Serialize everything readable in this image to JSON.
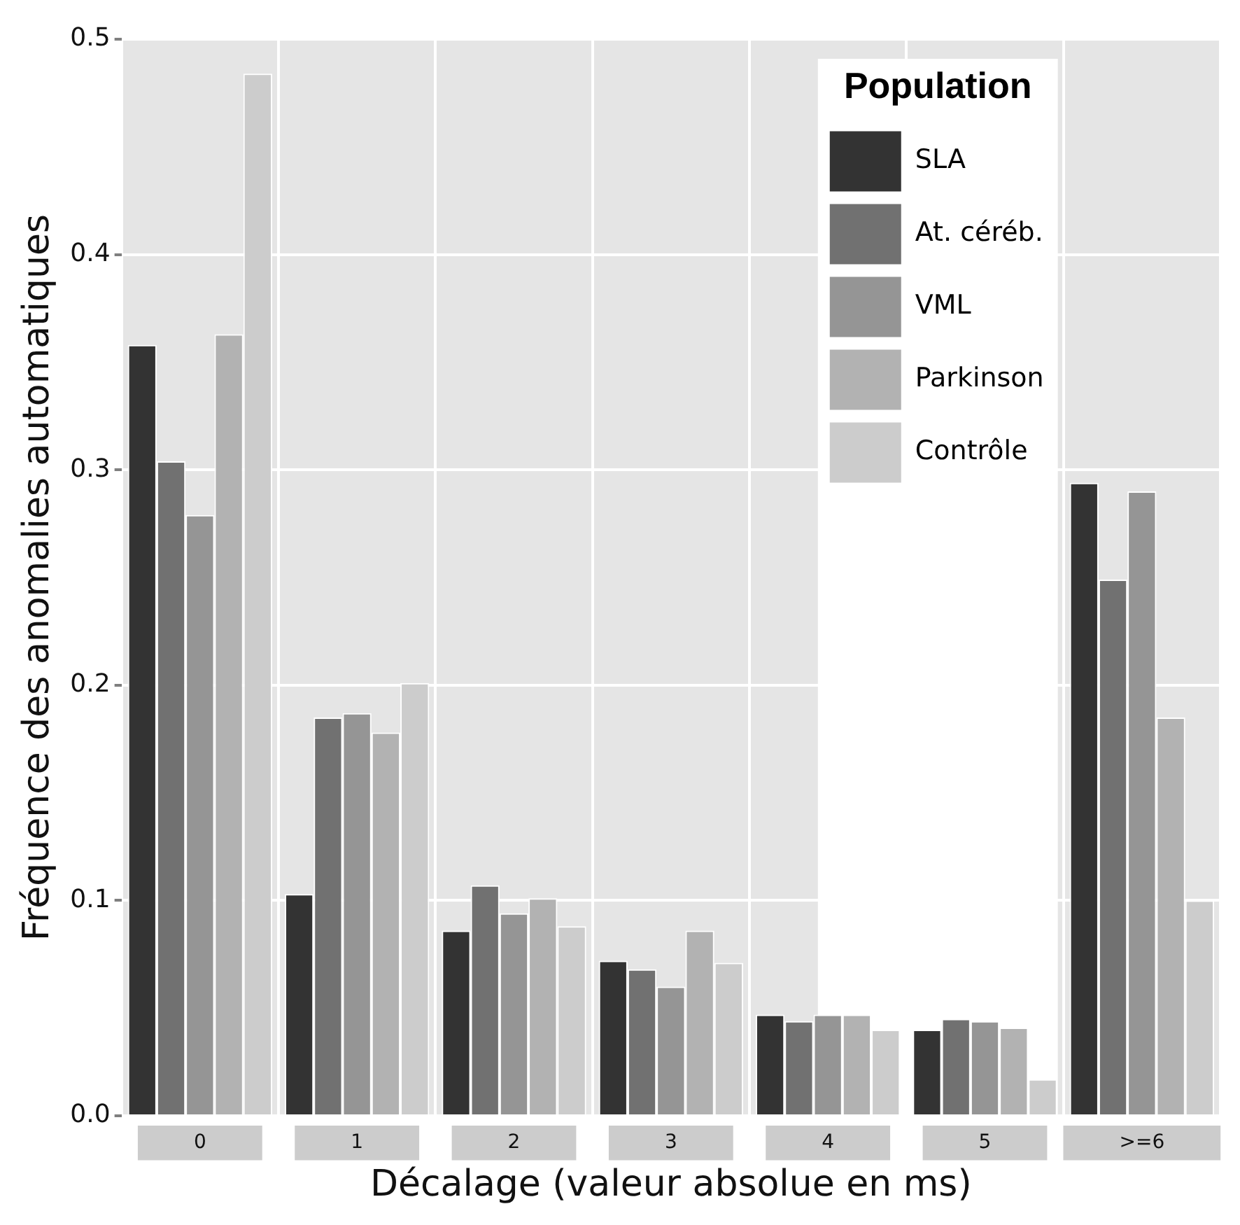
{
  "chart_data": {
    "type": "bar",
    "xlabel": "Décalage (valeur absolue en ms)",
    "ylabel": "Fréquence des anomalies automatiques",
    "legend_title": "Population",
    "categories": [
      "0",
      "1",
      "2",
      "3",
      "4",
      "5",
      ">=6"
    ],
    "series": [
      {
        "name": "SLA",
        "color": "#333333",
        "values": [
          0.358,
          0.103,
          0.086,
          0.072,
          0.047,
          0.04,
          0.294
        ]
      },
      {
        "name": "At. céréb.",
        "color": "#717171",
        "values": [
          0.304,
          0.185,
          0.107,
          0.068,
          0.044,
          0.045,
          0.249
        ]
      },
      {
        "name": "VML",
        "color": "#959595",
        "values": [
          0.279,
          0.187,
          0.094,
          0.06,
          0.047,
          0.044,
          0.29
        ]
      },
      {
        "name": "Parkinson",
        "color": "#b2b2b2",
        "values": [
          0.363,
          0.178,
          0.101,
          0.086,
          0.047,
          0.041,
          0.185
        ]
      },
      {
        "name": "Contrôle",
        "color": "#cccccc",
        "values": [
          0.484,
          0.201,
          0.088,
          0.071,
          0.04,
          0.017,
          0.1
        ]
      }
    ],
    "ylim": [
      0,
      0.5
    ],
    "yticks": [
      {
        "value": 0,
        "label": "0.0"
      },
      0.1,
      0.2,
      0.3,
      0.4,
      0.5
    ],
    "grid": true,
    "legend": "top right"
  }
}
